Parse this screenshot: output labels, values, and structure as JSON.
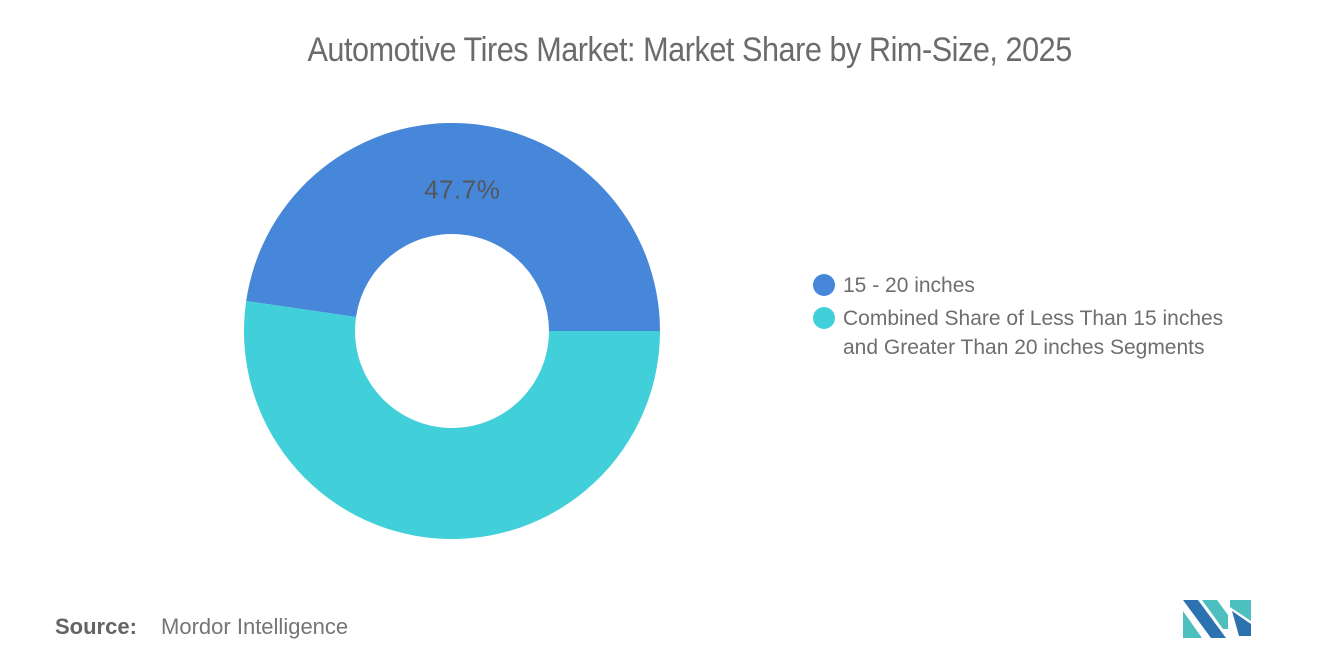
{
  "title": "Automotive Tires Market: Market Share by Rim-Size, 2025",
  "chart_data": {
    "type": "pie",
    "subtype": "donut",
    "title": "Automotive Tires Market: Market Share by Rim-Size, 2025",
    "units": "percent",
    "series": [
      {
        "name": "15 - 20 inches",
        "value": 47.7,
        "color": "#4687D9",
        "data_label": "47.7%"
      },
      {
        "name": "Combined Share of Less Than 15 inches and Greater Than 20 inches Segments",
        "value": 52.3,
        "color": "#41CFD9",
        "data_label": ""
      }
    ],
    "start_angle_deg": 0,
    "direction": "counterclockwise",
    "inner_radius_ratio": 0.467,
    "legend_position": "right-middle",
    "background": "#ffffff"
  },
  "legend": {
    "items": [
      {
        "label": "15 - 20 inches",
        "color": "#4687D9"
      },
      {
        "label": "Combined Share of Less Than 15 inches and Greater Than 20 inches Segments",
        "color": "#41CFD9"
      }
    ]
  },
  "data_label": "47.7%",
  "source": {
    "prefix": "Source:",
    "name": "Mordor Intelligence"
  },
  "logo": {
    "alt": "mordor-intelligence-logo",
    "blue": "#2D72B0",
    "teal": "#4CBFBE"
  }
}
